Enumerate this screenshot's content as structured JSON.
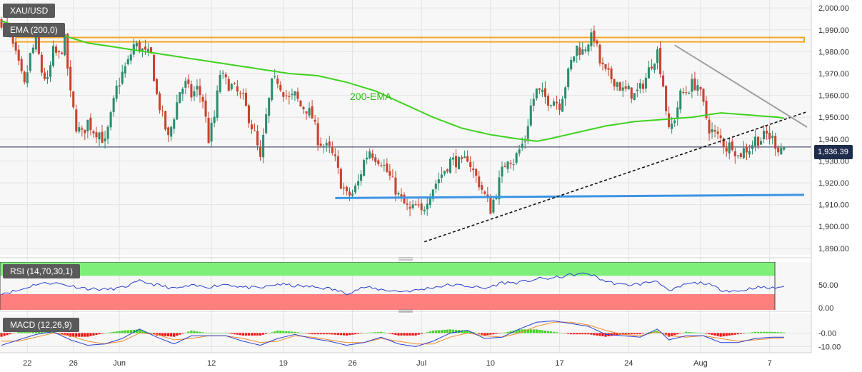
{
  "chart_data": {
    "type": "candlestick",
    "symbol": "XAU/USD",
    "indicator_label": "EMA (200,0)",
    "ema_annotation": "200-EMA",
    "current_price_label": "1,936.39",
    "current_price": 1936.39,
    "price_axis": {
      "range": [
        1887,
        2003
      ],
      "ticks": [
        "1,890.00",
        "1,900.00",
        "1,910.00",
        "1,920.00",
        "1,930.00",
        "1,940.00",
        "1,950.00",
        "1,960.00",
        "1,970.00",
        "1,980.00",
        "1,990.00",
        "2,000.00"
      ],
      "tick_values": [
        1890,
        1900,
        1910,
        1920,
        1930,
        1940,
        1950,
        1960,
        1970,
        1980,
        1990,
        2000
      ]
    },
    "x_axis": {
      "labels": [
        "22",
        "26",
        "Jun",
        "12",
        "19",
        "26",
        "Jul",
        "10",
        "17",
        "24",
        "Aug",
        "7"
      ],
      "label_bars": [
        9,
        25,
        41,
        73,
        98,
        122,
        146,
        170,
        194,
        218,
        243,
        267
      ]
    },
    "bars_total": 280,
    "close_path": [
      [
        0,
        1994
      ],
      [
        3,
        1987
      ],
      [
        5,
        1978
      ],
      [
        8,
        1964
      ],
      [
        10,
        1978
      ],
      [
        12,
        1985
      ],
      [
        14,
        1971
      ],
      [
        16,
        1966
      ],
      [
        18,
        1980
      ],
      [
        20,
        1978
      ],
      [
        22,
        1985
      ],
      [
        24,
        1960
      ],
      [
        26,
        1946
      ],
      [
        28,
        1942
      ],
      [
        30,
        1948
      ],
      [
        32,
        1944
      ],
      [
        34,
        1943
      ],
      [
        36,
        1938
      ],
      [
        38,
        1950
      ],
      [
        40,
        1963
      ],
      [
        42,
        1970
      ],
      [
        44,
        1975
      ],
      [
        46,
        1983
      ],
      [
        48,
        1982
      ],
      [
        50,
        1979
      ],
      [
        52,
        1978
      ],
      [
        54,
        1960
      ],
      [
        56,
        1950
      ],
      [
        58,
        1940
      ],
      [
        60,
        1951
      ],
      [
        62,
        1962
      ],
      [
        64,
        1965
      ],
      [
        66,
        1960
      ],
      [
        68,
        1963
      ],
      [
        70,
        1958
      ],
      [
        72,
        1940
      ],
      [
        74,
        1950
      ],
      [
        76,
        1970
      ],
      [
        78,
        1966
      ],
      [
        80,
        1964
      ],
      [
        82,
        1961
      ],
      [
        84,
        1958
      ],
      [
        86,
        1950
      ],
      [
        88,
        1942
      ],
      [
        90,
        1930
      ],
      [
        92,
        1950
      ],
      [
        94,
        1965
      ],
      [
        96,
        1967
      ],
      [
        98,
        1962
      ],
      [
        100,
        1958
      ],
      [
        102,
        1960
      ],
      [
        104,
        1955
      ],
      [
        106,
        1954
      ],
      [
        108,
        1950
      ],
      [
        110,
        1940
      ],
      [
        112,
        1937
      ],
      [
        114,
        1935
      ],
      [
        116,
        1930
      ],
      [
        118,
        1920
      ],
      [
        120,
        1914
      ],
      [
        122,
        1915
      ],
      [
        124,
        1920
      ],
      [
        126,
        1930
      ],
      [
        128,
        1935
      ],
      [
        130,
        1932
      ],
      [
        132,
        1930
      ],
      [
        134,
        1925
      ],
      [
        136,
        1920
      ],
      [
        138,
        1914
      ],
      [
        140,
        1910
      ],
      [
        142,
        1907
      ],
      [
        144,
        1909
      ],
      [
        146,
        1906
      ],
      [
        148,
        1913
      ],
      [
        150,
        1918
      ],
      [
        152,
        1922
      ],
      [
        154,
        1926
      ],
      [
        156,
        1930
      ],
      [
        158,
        1930
      ],
      [
        160,
        1928
      ],
      [
        162,
        1932
      ],
      [
        164,
        1925
      ],
      [
        166,
        1920
      ],
      [
        168,
        1914
      ],
      [
        170,
        1908
      ],
      [
        172,
        1916
      ],
      [
        174,
        1925
      ],
      [
        176,
        1932
      ],
      [
        178,
        1930
      ],
      [
        180,
        1935
      ],
      [
        182,
        1940
      ],
      [
        184,
        1955
      ],
      [
        186,
        1962
      ],
      [
        188,
        1960
      ],
      [
        190,
        1958
      ],
      [
        192,
        1958
      ],
      [
        194,
        1956
      ],
      [
        196,
        1965
      ],
      [
        198,
        1975
      ],
      [
        200,
        1982
      ],
      [
        202,
        1980
      ],
      [
        204,
        1985
      ],
      [
        206,
        1987
      ],
      [
        208,
        1975
      ],
      [
        210,
        1970
      ],
      [
        212,
        1968
      ],
      [
        214,
        1966
      ],
      [
        216,
        1962
      ],
      [
        218,
        1962
      ],
      [
        220,
        1960
      ],
      [
        222,
        1963
      ],
      [
        224,
        1968
      ],
      [
        226,
        1975
      ],
      [
        228,
        1980
      ],
      [
        230,
        1965
      ],
      [
        232,
        1943
      ],
      [
        234,
        1950
      ],
      [
        236,
        1960
      ],
      [
        238,
        1962
      ],
      [
        240,
        1965
      ],
      [
        242,
        1965
      ],
      [
        244,
        1955
      ],
      [
        246,
        1945
      ],
      [
        248,
        1942
      ],
      [
        250,
        1940
      ],
      [
        252,
        1936
      ],
      [
        254,
        1938
      ],
      [
        256,
        1932
      ],
      [
        258,
        1935
      ],
      [
        260,
        1936
      ],
      [
        262,
        1940
      ],
      [
        264,
        1940
      ],
      [
        266,
        1942
      ],
      [
        268,
        1940
      ],
      [
        270,
        1936
      ],
      [
        272,
        1936.39
      ]
    ],
    "ema_200": [
      [
        0,
        1994
      ],
      [
        10,
        1990
      ],
      [
        20,
        1988
      ],
      [
        30,
        1984
      ],
      [
        40,
        1982
      ],
      [
        50,
        1980
      ],
      [
        60,
        1978
      ],
      [
        70,
        1976
      ],
      [
        80,
        1974
      ],
      [
        90,
        1972
      ],
      [
        100,
        1970
      ],
      [
        110,
        1969
      ],
      [
        120,
        1966
      ],
      [
        130,
        1962
      ],
      [
        140,
        1956
      ],
      [
        150,
        1950
      ],
      [
        160,
        1945
      ],
      [
        170,
        1942
      ],
      [
        180,
        1940
      ],
      [
        186,
        1939
      ],
      [
        190,
        1940
      ],
      [
        200,
        1943
      ],
      [
        210,
        1946
      ],
      [
        220,
        1948
      ],
      [
        230,
        1949
      ],
      [
        240,
        1950
      ],
      [
        250,
        1952
      ],
      [
        260,
        1951
      ],
      [
        270,
        1950
      ],
      [
        272,
        1949.5
      ]
    ],
    "resistance_zone": {
      "low": 1984.5,
      "high": 1986.5,
      "from_bar": 5,
      "to_bar": 279
    },
    "support_line": {
      "from": [
        116,
        1913
      ],
      "to": [
        279,
        1914.5
      ]
    },
    "ascending_trendline": {
      "from": [
        147,
        1893
      ],
      "to": [
        280,
        1952.5
      ]
    },
    "descending_trendline": {
      "from": [
        234,
        1983
      ],
      "to": [
        280,
        1945.5
      ]
    },
    "rsi": {
      "label": "RSI (14,70,30,1)",
      "range": [
        -9,
        100
      ],
      "ticks": [
        "50.00",
        "0.00"
      ],
      "tick_values": [
        50,
        0
      ],
      "overbought": 70,
      "oversold": 30,
      "values": [
        [
          0,
          32
        ],
        [
          6,
          38
        ],
        [
          12,
          52
        ],
        [
          18,
          55
        ],
        [
          24,
          48
        ],
        [
          30,
          42
        ],
        [
          36,
          40
        ],
        [
          42,
          44
        ],
        [
          48,
          58
        ],
        [
          54,
          50
        ],
        [
          60,
          42
        ],
        [
          66,
          48
        ],
        [
          72,
          46
        ],
        [
          78,
          52
        ],
        [
          84,
          45
        ],
        [
          90,
          43
        ],
        [
          96,
          52
        ],
        [
          102,
          48
        ],
        [
          108,
          46
        ],
        [
          114,
          42
        ],
        [
          120,
          32
        ],
        [
          126,
          45
        ],
        [
          132,
          40
        ],
        [
          138,
          36
        ],
        [
          144,
          38
        ],
        [
          150,
          45
        ],
        [
          156,
          50
        ],
        [
          162,
          48
        ],
        [
          168,
          42
        ],
        [
          174,
          55
        ],
        [
          180,
          55
        ],
        [
          186,
          63
        ],
        [
          192,
          65
        ],
        [
          198,
          72
        ],
        [
          204,
          75
        ],
        [
          210,
          58
        ],
        [
          216,
          50
        ],
        [
          222,
          52
        ],
        [
          228,
          60
        ],
        [
          232,
          35
        ],
        [
          238,
          52
        ],
        [
          244,
          55
        ],
        [
          250,
          40
        ],
        [
          256,
          36
        ],
        [
          262,
          45
        ],
        [
          268,
          43
        ],
        [
          272,
          47
        ]
      ]
    },
    "macd": {
      "label": "MACD (12,26,9)",
      "range": [
        -14.5,
        15
      ],
      "ticks": [
        "-0.00",
        "-10.00"
      ],
      "tick_values": [
        0,
        -10
      ],
      "macd_line": [
        [
          0,
          -9
        ],
        [
          6,
          -5
        ],
        [
          12,
          -1
        ],
        [
          18,
          1
        ],
        [
          24,
          -5
        ],
        [
          30,
          -9
        ],
        [
          36,
          -8
        ],
        [
          42,
          -4
        ],
        [
          48,
          3
        ],
        [
          54,
          -3
        ],
        [
          60,
          -8
        ],
        [
          66,
          -2
        ],
        [
          72,
          -2
        ],
        [
          78,
          -2
        ],
        [
          84,
          -6
        ],
        [
          90,
          -9
        ],
        [
          96,
          -4
        ],
        [
          102,
          -1
        ],
        [
          108,
          -4
        ],
        [
          114,
          -6
        ],
        [
          120,
          -9
        ],
        [
          126,
          -7
        ],
        [
          132,
          -3
        ],
        [
          138,
          -8
        ],
        [
          144,
          -10
        ],
        [
          150,
          -6
        ],
        [
          156,
          0
        ],
        [
          162,
          2
        ],
        [
          168,
          -4
        ],
        [
          174,
          -3
        ],
        [
          180,
          3
        ],
        [
          186,
          8
        ],
        [
          192,
          9
        ],
        [
          198,
          7
        ],
        [
          204,
          5
        ],
        [
          210,
          -1
        ],
        [
          216,
          -2
        ],
        [
          222,
          -3
        ],
        [
          228,
          3
        ],
        [
          232,
          -5
        ],
        [
          238,
          -2
        ],
        [
          244,
          -2
        ],
        [
          250,
          -7
        ],
        [
          256,
          -7
        ],
        [
          262,
          -4
        ],
        [
          268,
          -3
        ],
        [
          272,
          -3
        ]
      ],
      "signal_line": [
        [
          0,
          -6
        ],
        [
          6,
          -6
        ],
        [
          12,
          -3
        ],
        [
          18,
          0
        ],
        [
          24,
          -2
        ],
        [
          30,
          -6
        ],
        [
          36,
          -8
        ],
        [
          42,
          -6
        ],
        [
          48,
          0
        ],
        [
          54,
          -1
        ],
        [
          60,
          -5
        ],
        [
          66,
          -4
        ],
        [
          72,
          -2
        ],
        [
          78,
          -2
        ],
        [
          84,
          -4
        ],
        [
          90,
          -7
        ],
        [
          96,
          -6
        ],
        [
          102,
          -2
        ],
        [
          108,
          -3
        ],
        [
          114,
          -5
        ],
        [
          120,
          -7
        ],
        [
          126,
          -7
        ],
        [
          132,
          -4
        ],
        [
          138,
          -6
        ],
        [
          144,
          -8
        ],
        [
          150,
          -8
        ],
        [
          156,
          -3
        ],
        [
          162,
          0
        ],
        [
          168,
          -2
        ],
        [
          174,
          -3
        ],
        [
          180,
          0
        ],
        [
          186,
          5
        ],
        [
          192,
          8
        ],
        [
          198,
          8
        ],
        [
          204,
          6
        ],
        [
          210,
          2
        ],
        [
          216,
          -1
        ],
        [
          222,
          -2
        ],
        [
          228,
          1
        ],
        [
          232,
          -2
        ],
        [
          238,
          -3
        ],
        [
          244,
          -2
        ],
        [
          250,
          -4
        ],
        [
          256,
          -6
        ],
        [
          262,
          -5
        ],
        [
          268,
          -4
        ],
        [
          272,
          -3.5
        ]
      ]
    },
    "colors": {
      "bull": "#2c8c6f",
      "bear": "#c9432f",
      "ema": "#3fd11f",
      "zone": "#f5a623",
      "support": "#3d94e3",
      "trend_black": "#111111",
      "trend_gray": "#a0a0a0",
      "price_line": "#1f2d4d",
      "rsi_line": "#2a3fcf",
      "rsi_high": "#7ef07a",
      "rsi_low": "#ff7e7e",
      "macd": "#2a3fcf",
      "signal": "#f28b2c",
      "hist_pos": "#3fd11f",
      "hist_neg": "#f01010"
    }
  }
}
